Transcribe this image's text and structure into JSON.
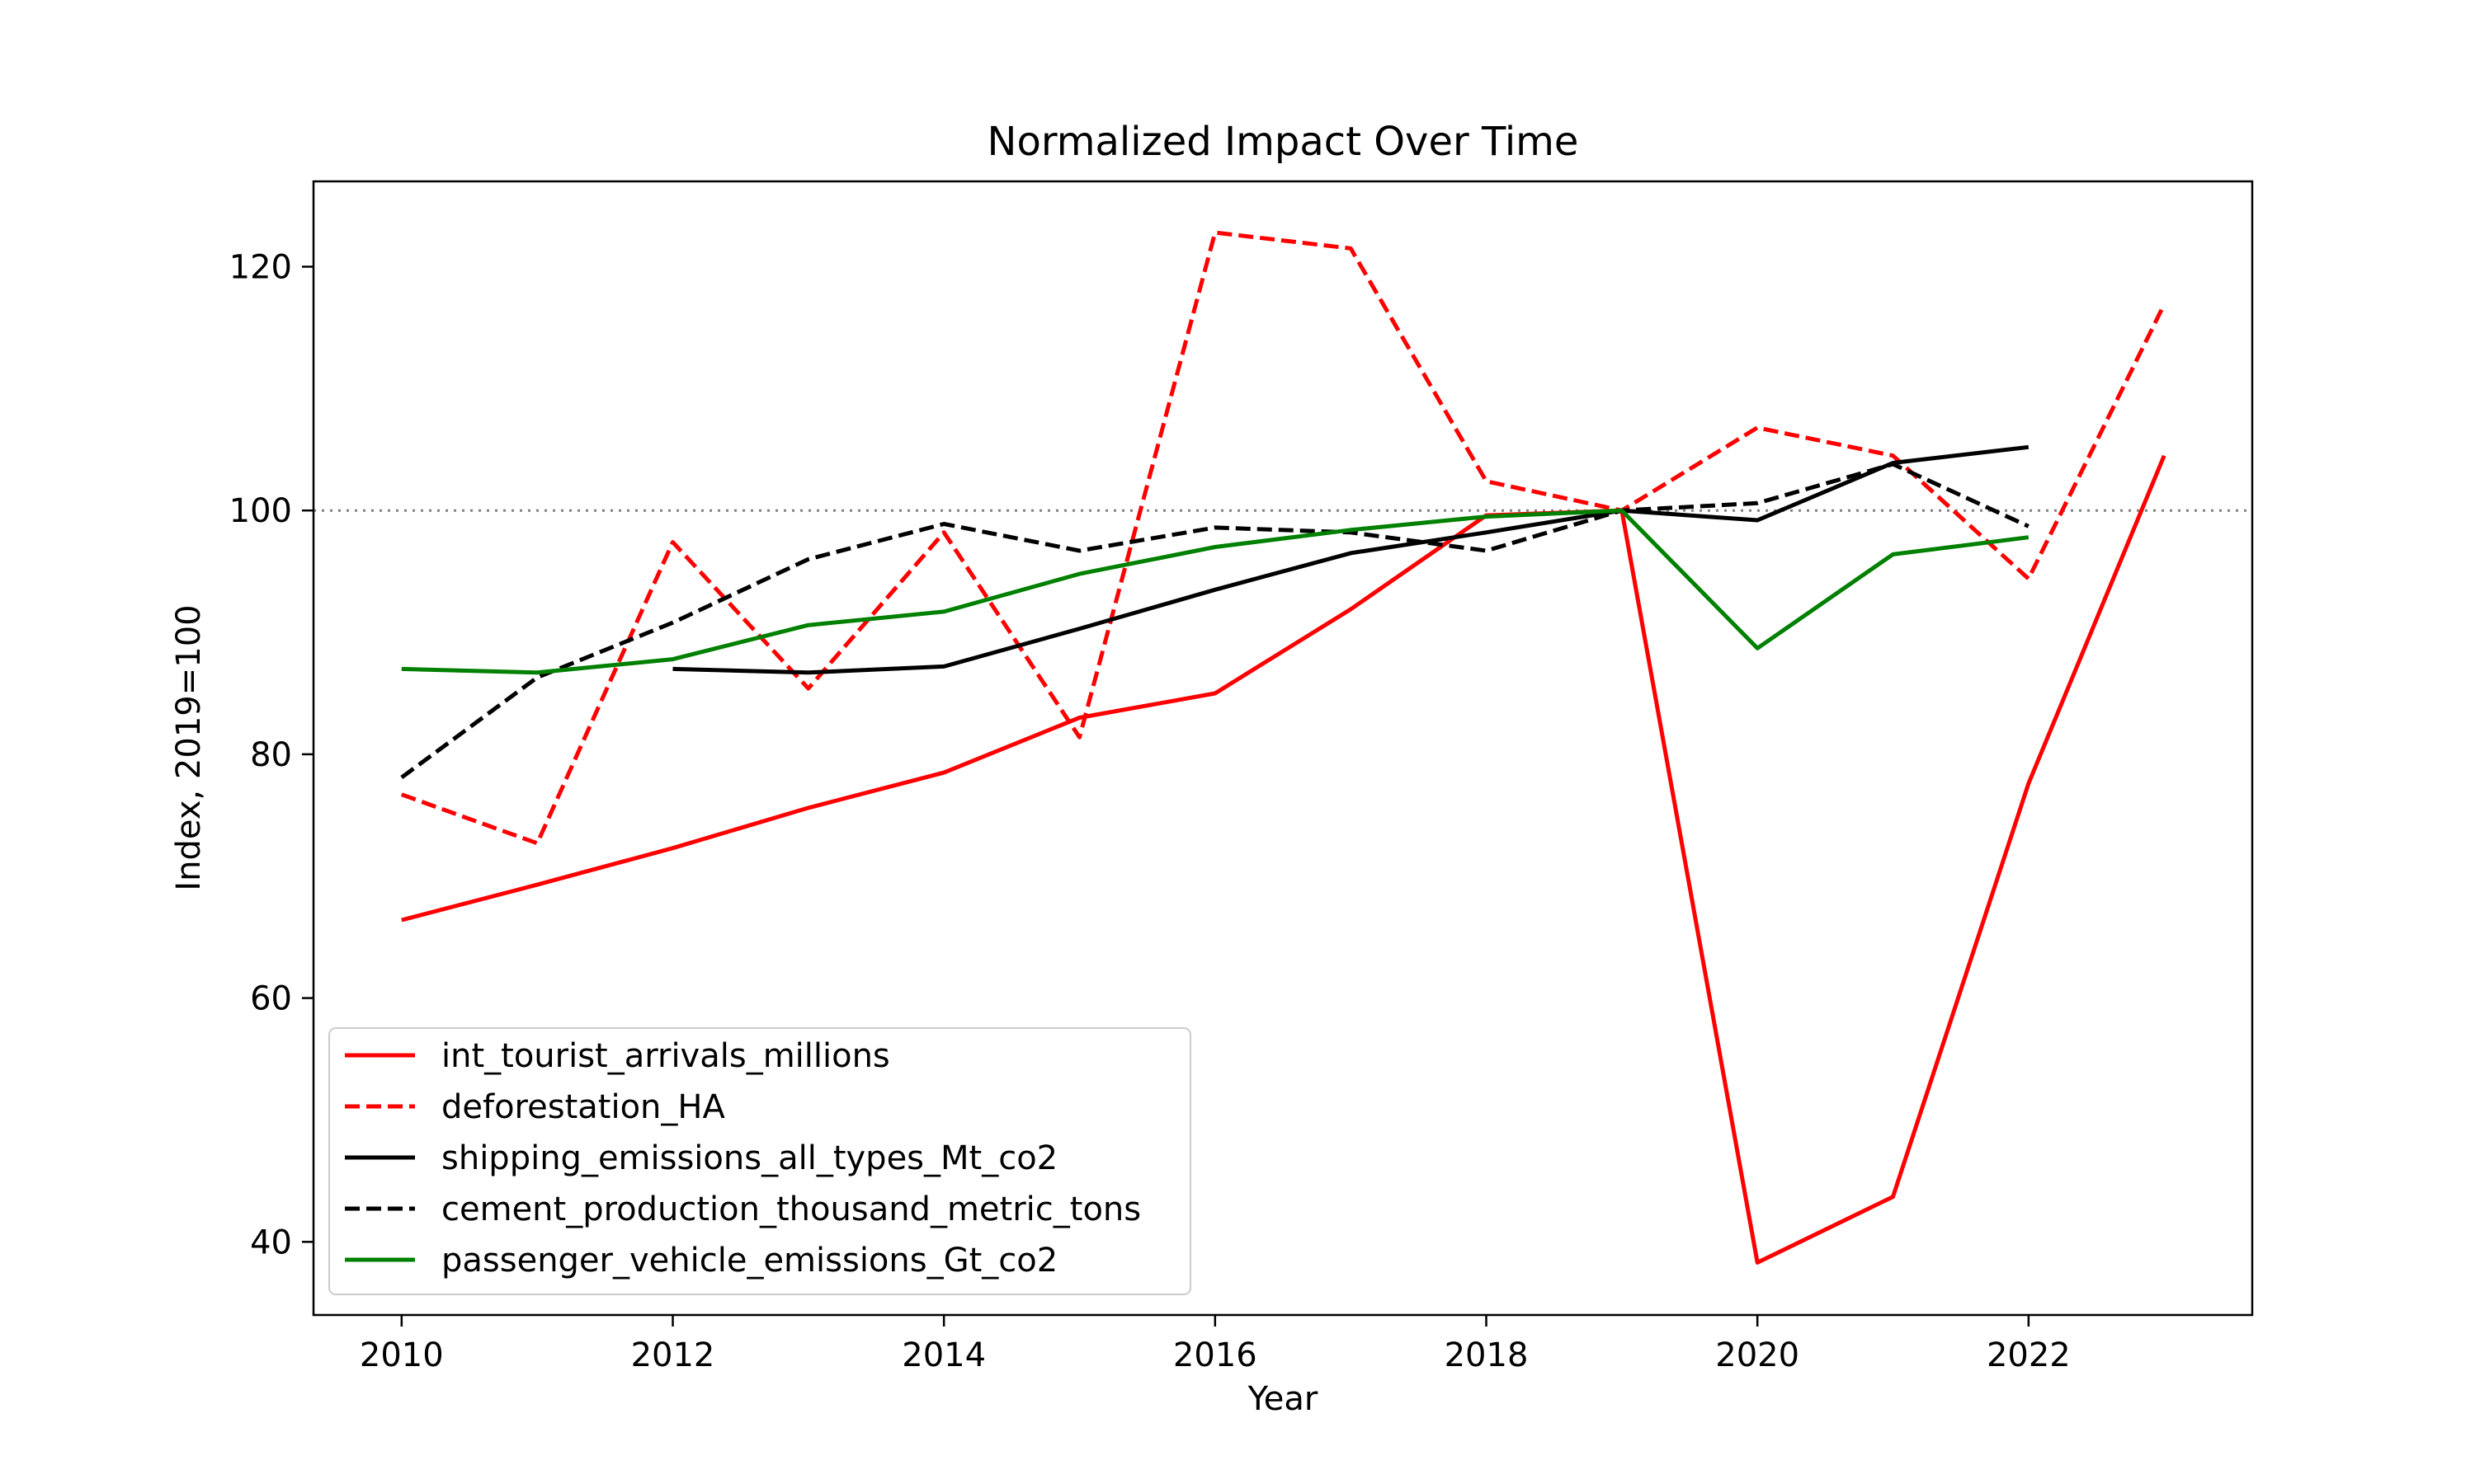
{
  "chart_data": {
    "type": "line",
    "title": "Normalized Impact Over Time",
    "xlabel": "Year",
    "ylabel": "Index, 2019=100",
    "xlim": [
      2009.35,
      2023.65
    ],
    "ylim": [
      34.0,
      127.0
    ],
    "xticks": [
      2010,
      2012,
      2014,
      2016,
      2018,
      2020,
      2022
    ],
    "yticks": [
      40,
      60,
      80,
      100,
      120
    ],
    "reference_line": {
      "y": 100,
      "style": "dotted",
      "color": "#808080"
    },
    "grid": false,
    "legend_position": "lower-left",
    "series": [
      {
        "name": "int_tourist_arrivals_millions",
        "color": "#ff0000",
        "dash": "solid",
        "x": [
          2010,
          2011,
          2012,
          2013,
          2014,
          2015,
          2016,
          2017,
          2018,
          2019,
          2020,
          2021,
          2022,
          2023
        ],
        "y": [
          66.4,
          69.3,
          72.3,
          75.6,
          78.5,
          83.0,
          85.0,
          91.9,
          99.6,
          100.0,
          38.3,
          43.7,
          77.6,
          104.5
        ]
      },
      {
        "name": "deforestation_HA",
        "color": "#ff0000",
        "dash": "dashed",
        "x": [
          2010,
          2011,
          2012,
          2013,
          2014,
          2015,
          2016,
          2017,
          2018,
          2019,
          2020,
          2021,
          2022,
          2023
        ],
        "y": [
          76.7,
          72.7,
          97.4,
          85.4,
          98.2,
          81.4,
          122.8,
          121.5,
          102.4,
          100.0,
          106.8,
          104.5,
          94.4,
          116.9
        ]
      },
      {
        "name": "shipping_emissions_all_types_Mt_co2",
        "color": "#000000",
        "dash": "solid",
        "x": [
          2012,
          2013,
          2014,
          2015,
          2016,
          2017,
          2018,
          2019,
          2020,
          2021,
          2022
        ],
        "y": [
          87.0,
          86.7,
          87.2,
          90.3,
          93.5,
          96.5,
          98.2,
          100.0,
          99.2,
          103.9,
          105.2
        ]
      },
      {
        "name": "cement_production_thousand_metric_tons",
        "color": "#000000",
        "dash": "dashed",
        "x": [
          2010,
          2011,
          2012,
          2013,
          2014,
          2015,
          2016,
          2017,
          2018,
          2019,
          2020,
          2021,
          2022
        ],
        "y": [
          78.1,
          86.3,
          90.8,
          96.0,
          98.9,
          96.7,
          98.6,
          98.2,
          96.7,
          100.0,
          100.6,
          103.8,
          98.7
        ]
      },
      {
        "name": "passenger_vehicle_emissions_Gt_co2",
        "color": "#008000",
        "dash": "solid",
        "x": [
          2010,
          2011,
          2012,
          2013,
          2014,
          2015,
          2016,
          2017,
          2018,
          2019,
          2020,
          2021,
          2022
        ],
        "y": [
          87.0,
          86.7,
          87.8,
          90.6,
          91.7,
          94.8,
          97.0,
          98.4,
          99.5,
          100.0,
          88.7,
          96.4,
          97.8
        ]
      }
    ]
  }
}
